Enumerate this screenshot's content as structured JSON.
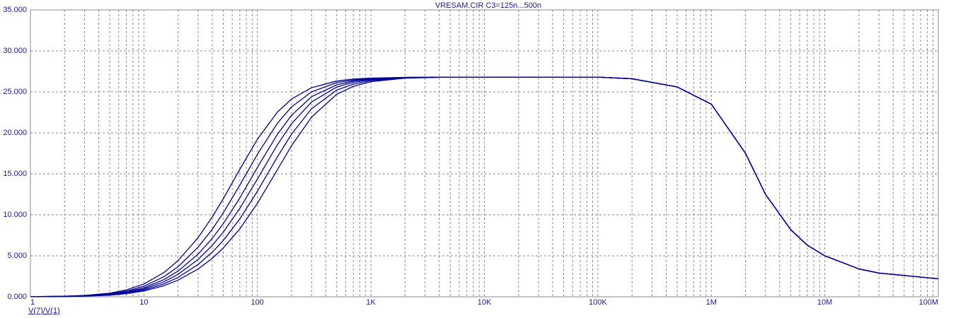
{
  "chart_data": {
    "type": "line",
    "title": "VRESAM.CIR C3=125n...500n",
    "ylabel": "V(7)/V(1)",
    "xscale": "log",
    "grid": true,
    "minor_grid": true,
    "xlim": [
      1,
      100000000
    ],
    "ylim": [
      0,
      35
    ],
    "xticks": [
      1,
      10,
      100,
      {
        "value": 1000,
        "label": "1K"
      },
      {
        "value": 10000,
        "label": "10K"
      },
      {
        "value": 100000,
        "label": "100K"
      },
      {
        "value": 1000000,
        "label": "1M"
      },
      {
        "value": 10000000,
        "label": "10M"
      },
      {
        "value": 100000000,
        "label": "100M"
      }
    ],
    "yticks": [
      {
        "value": 0,
        "label": "0.000"
      },
      {
        "value": 5,
        "label": "5.000"
      },
      {
        "value": 10,
        "label": "10.000"
      },
      {
        "value": 15,
        "label": "15.000"
      },
      {
        "value": 20,
        "label": "20.000"
      },
      {
        "value": 25,
        "label": "25.000"
      },
      {
        "value": 30,
        "label": "30.000"
      },
      {
        "value": 35,
        "label": "35.000"
      }
    ],
    "x": [
      1,
      2,
      3,
      5,
      7,
      10,
      15,
      20,
      30,
      40,
      50,
      70,
      100,
      150,
      200,
      300,
      500,
      700,
      1000,
      2000,
      5000,
      10000,
      100000,
      200000,
      500000,
      1000000,
      2000000,
      3000000,
      5000000,
      7000000,
      10000000,
      20000000,
      30000000,
      50000000,
      100000000
    ],
    "series": [
      {
        "color": "#000099",
        "values": [
          0.019,
          0.075,
          0.166,
          0.445,
          0.836,
          1.557,
          2.955,
          4.416,
          7.21,
          9.73,
          11.95,
          15.55,
          19.22,
          22.53,
          24.13,
          25.51,
          26.32,
          26.56,
          26.68,
          26.77,
          26.8,
          26.8,
          26.8,
          26.6,
          25.6,
          23.5,
          17.5,
          12.5,
          8.2,
          6.3,
          5.0,
          3.4,
          2.9,
          2.6,
          2.2
        ]
      },
      {
        "color": "#000099",
        "values": [
          0.015,
          0.062,
          0.137,
          0.368,
          0.69,
          1.288,
          2.45,
          3.675,
          6.05,
          8.24,
          10.23,
          13.63,
          17.39,
          21.17,
          23.17,
          25.0,
          26.13,
          26.45,
          26.62,
          26.76,
          26.8,
          26.8,
          26.8,
          26.6,
          25.6,
          23.5,
          17.5,
          12.5,
          8.2,
          6.3,
          5.0,
          3.4,
          2.9,
          2.6,
          2.2
        ]
      },
      {
        "color": "#000099",
        "values": [
          0.013,
          0.052,
          0.117,
          0.313,
          0.588,
          1.099,
          2.094,
          3.141,
          5.2,
          7.12,
          8.91,
          12.06,
          15.78,
          19.82,
          22.15,
          24.41,
          25.86,
          26.32,
          26.56,
          26.74,
          26.8,
          26.8,
          26.8,
          26.6,
          25.6,
          23.5,
          17.5,
          12.5,
          8.2,
          6.3,
          5.0,
          3.4,
          2.9,
          2.6,
          2.2
        ]
      },
      {
        "color": "#000099",
        "values": [
          0.011,
          0.046,
          0.102,
          0.273,
          0.512,
          0.958,
          1.826,
          2.744,
          4.55,
          6.27,
          7.88,
          10.79,
          14.37,
          18.54,
          21.11,
          23.77,
          25.59,
          26.16,
          26.48,
          26.72,
          26.8,
          26.8,
          26.8,
          26.6,
          25.6,
          23.5,
          17.5,
          12.5,
          8.2,
          6.3,
          5.0,
          3.4,
          2.9,
          2.6,
          2.2
        ]
      },
      {
        "color": "#000099",
        "values": [
          0.01,
          0.039,
          0.088,
          0.235,
          0.441,
          0.825,
          1.574,
          2.367,
          3.94,
          5.44,
          6.87,
          9.5,
          12.88,
          17.07,
          19.85,
          22.94,
          25.22,
          25.94,
          26.37,
          26.7,
          26.8,
          26.8,
          26.8,
          26.6,
          25.6,
          23.5,
          17.5,
          12.5,
          8.2,
          6.3,
          5.0,
          3.4,
          2.9,
          2.6,
          2.2
        ]
      },
      {
        "color": "#000099",
        "values": [
          0.008,
          0.034,
          0.075,
          0.201,
          0.378,
          0.708,
          1.351,
          2.032,
          3.39,
          4.69,
          5.95,
          8.29,
          11.4,
          15.5,
          18.44,
          21.92,
          24.71,
          25.67,
          26.24,
          26.67,
          26.8,
          26.8,
          26.8,
          26.6,
          25.6,
          23.5,
          17.5,
          12.5,
          8.2,
          6.3,
          5.0,
          3.4,
          2.9,
          2.6,
          2.2
        ]
      }
    ]
  }
}
